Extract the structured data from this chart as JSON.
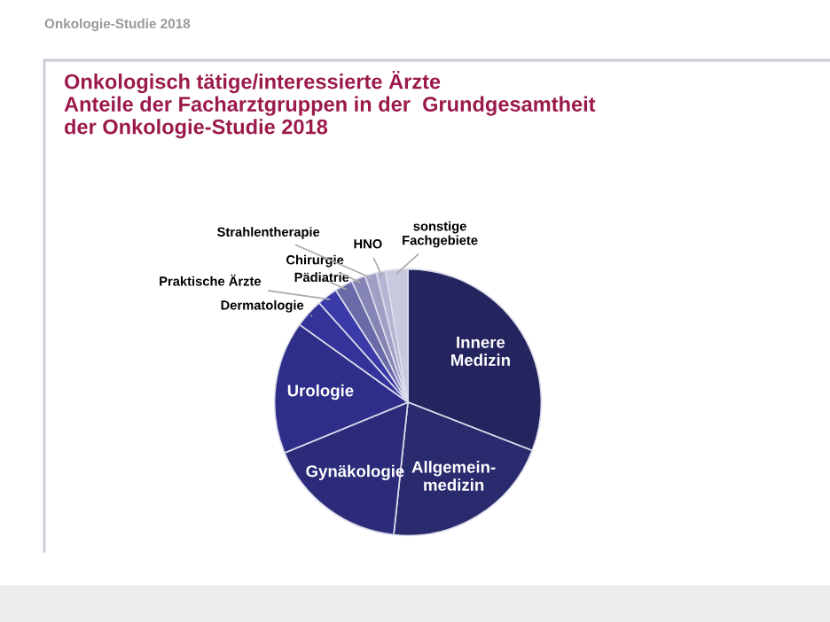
{
  "chart_data": {
    "type": "pie",
    "title": "Onkologisch tätige/interessierte Ärzte\nAnteile der Facharztgruppen in der  Grundgesamtheit\nder Onkologie-Studie 2018",
    "annotations": [
      "Onkologie-Studie 2018"
    ],
    "categories": [
      "Innere\nMedizin",
      "Allgemein-\nmedizin",
      "Gynäkologie",
      "Urologie",
      "Dermatologie",
      "Praktische Ärzte",
      "Pädiatrie",
      "Chirurgie",
      "Strahlentherapie",
      "HNO",
      "sonstige\nFachgebiete"
    ],
    "values": [
      30.9,
      20.8,
      17.1,
      16.1,
      3.5,
      2.5,
      2.2,
      1.7,
      1.4,
      1.1,
      2.7
    ],
    "colors": [
      "#24245e",
      "#2a2a6e",
      "#2b2b7a",
      "#2e2e8a",
      "#33339a",
      "#3a3aa8",
      "#6a6aa8",
      "#8585b5",
      "#a0a0c5",
      "#b5b5d2",
      "#c8c8de"
    ],
    "legend": false
  }
}
